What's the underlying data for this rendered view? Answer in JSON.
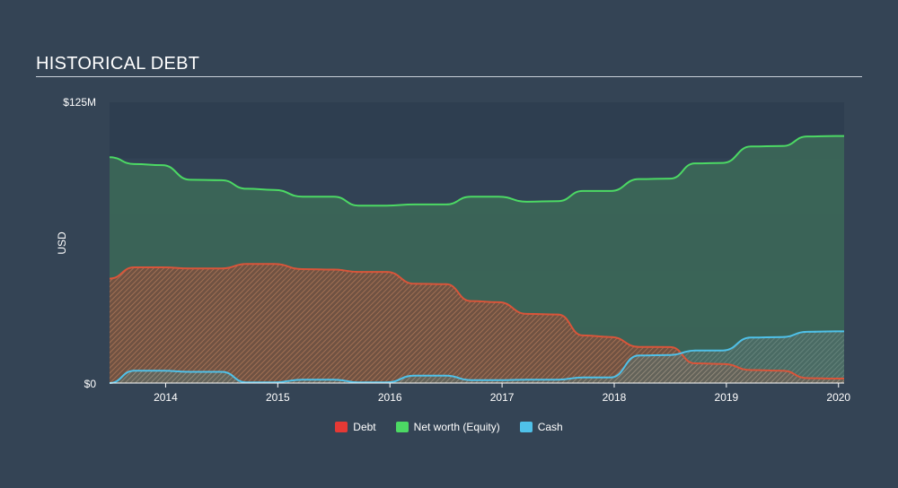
{
  "header": {
    "title": "HISTORICAL DEBT"
  },
  "chart_data": {
    "type": "area",
    "title": "HISTORICAL DEBT",
    "ylabel": "USD",
    "xlabel": "",
    "ylim": [
      0,
      125
    ],
    "xlim": [
      2013.5,
      2020.05
    ],
    "y_tick_labels": [
      {
        "value": 0,
        "label": "$0"
      },
      {
        "value": 125,
        "label": "$125M"
      }
    ],
    "x_tick_labels": [
      "2014",
      "2015",
      "2016",
      "2017",
      "2018",
      "2019",
      "2020"
    ],
    "x_ticks": [
      2014,
      2015,
      2016,
      2017,
      2018,
      2019,
      2020
    ],
    "legend_position": "bottom-center",
    "series": [
      {
        "name": "Debt",
        "color": "#e53935",
        "x": [
          2013.5,
          2013.72,
          2013.97,
          2014.22,
          2014.5,
          2014.72,
          2014.97,
          2015.22,
          2015.5,
          2015.72,
          2015.97,
          2016.22,
          2016.5,
          2016.72,
          2016.97,
          2017.22,
          2017.5,
          2017.72,
          2017.97,
          2018.22,
          2018.5,
          2018.72,
          2018.97,
          2019.22,
          2019.5,
          2019.72,
          2019.97,
          2020.05
        ],
        "values": [
          46.5,
          51.5,
          51.5,
          51.0,
          51.0,
          53.0,
          53.0,
          50.7,
          50.5,
          49.5,
          49.5,
          44.2,
          44.0,
          36.5,
          36.0,
          30.8,
          30.5,
          21.2,
          20.5,
          16.1,
          16.0,
          8.8,
          8.5,
          5.8,
          5.5,
          2.2,
          2.0,
          2.0
        ]
      },
      {
        "name": "Net worth (Equity)",
        "color": "#4cd964",
        "x": [
          2013.5,
          2013.72,
          2013.97,
          2014.22,
          2014.5,
          2014.72,
          2014.97,
          2015.22,
          2015.5,
          2015.72,
          2015.97,
          2016.22,
          2016.5,
          2016.72,
          2016.97,
          2017.22,
          2017.5,
          2017.72,
          2017.97,
          2018.22,
          2018.5,
          2018.72,
          2018.97,
          2019.22,
          2019.5,
          2019.72,
          2019.97,
          2020.05
        ],
        "values": [
          100.5,
          97.5,
          97.0,
          90.5,
          90.3,
          86.5,
          86.0,
          83.0,
          83.0,
          79.0,
          79.0,
          79.5,
          79.5,
          83.0,
          83.0,
          80.7,
          81.0,
          85.5,
          85.5,
          90.8,
          91.0,
          97.8,
          98.0,
          105.3,
          105.5,
          109.8,
          110.0,
          110.0
        ]
      },
      {
        "name": "Cash",
        "color": "#4fc1e9",
        "x": [
          2013.5,
          2013.72,
          2013.97,
          2014.22,
          2014.5,
          2014.72,
          2014.97,
          2015.22,
          2015.5,
          2015.72,
          2015.97,
          2016.22,
          2016.5,
          2016.72,
          2016.97,
          2017.22,
          2017.5,
          2017.72,
          2017.97,
          2018.22,
          2018.5,
          2018.72,
          2018.97,
          2019.22,
          2019.5,
          2019.72,
          2019.97,
          2020.05
        ],
        "values": [
          0.0,
          5.5,
          5.5,
          5.0,
          5.0,
          0.3,
          0.3,
          1.5,
          1.5,
          0.3,
          0.3,
          3.3,
          3.3,
          1.3,
          1.3,
          1.5,
          1.5,
          2.5,
          2.5,
          12.3,
          12.5,
          14.5,
          14.5,
          20.3,
          20.5,
          22.8,
          23.0,
          23.0
        ]
      }
    ]
  }
}
